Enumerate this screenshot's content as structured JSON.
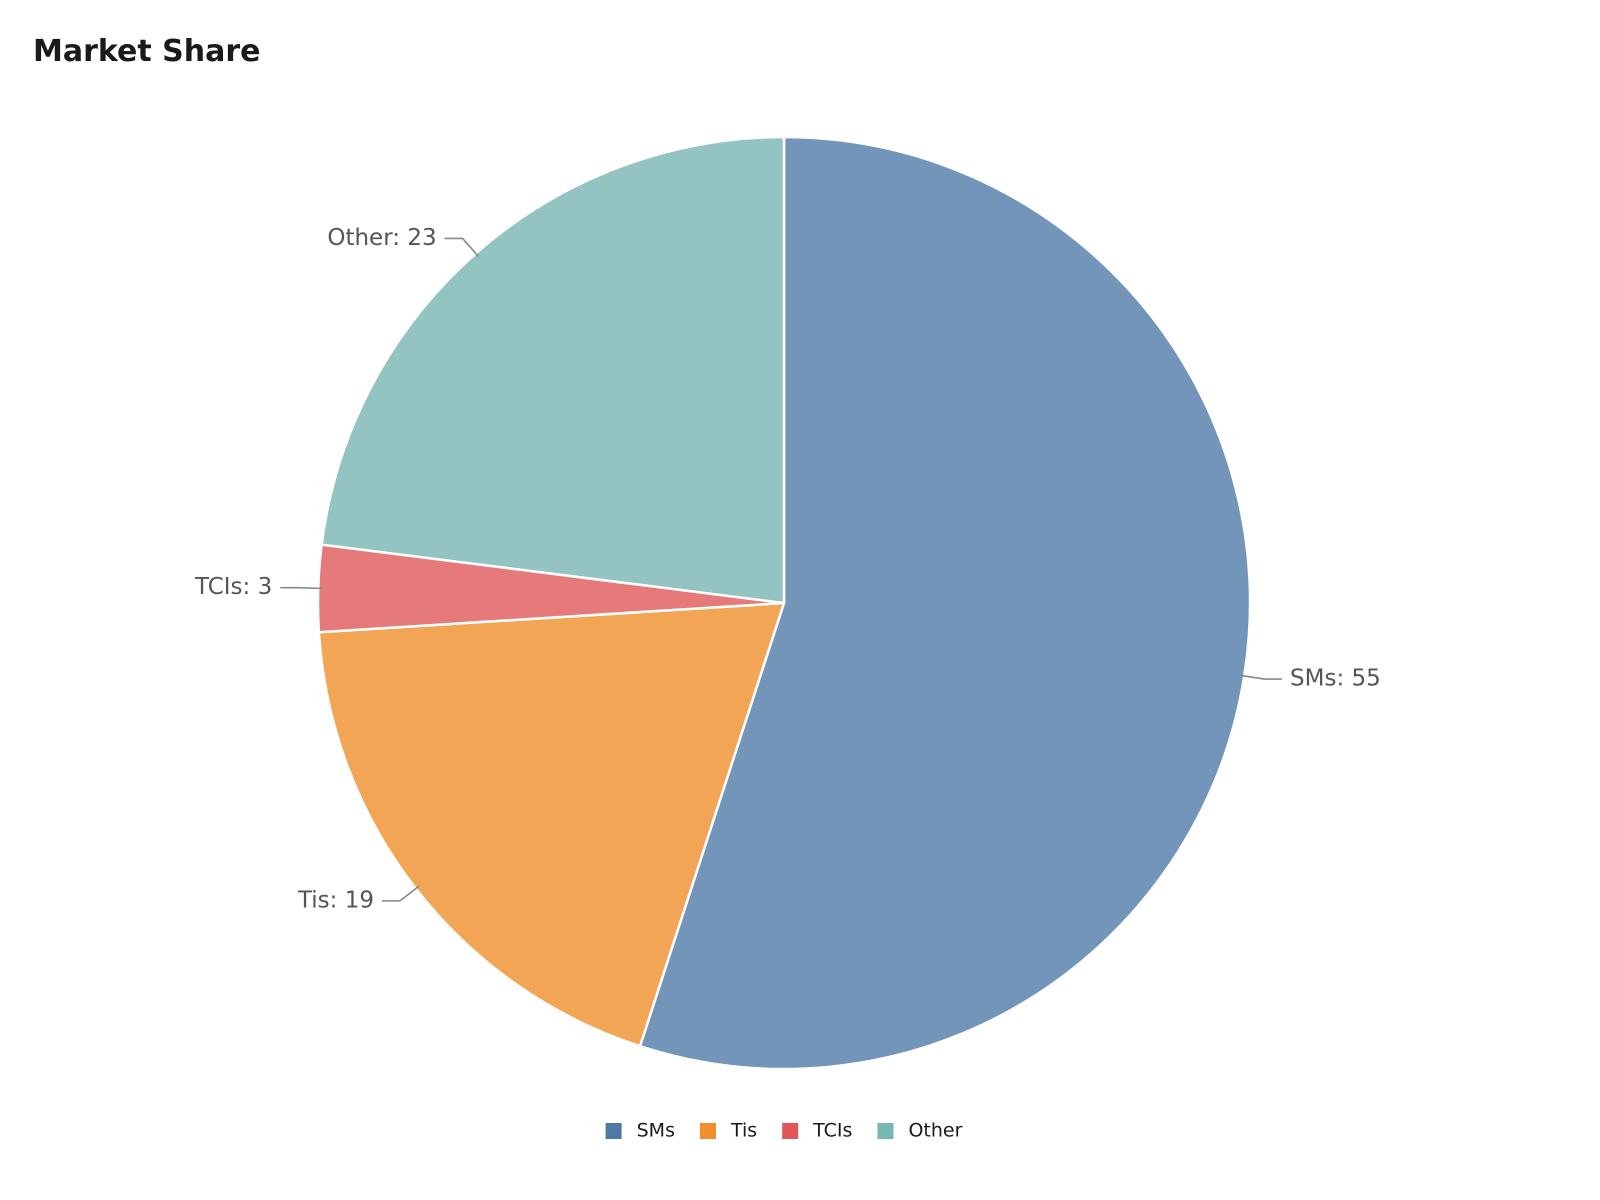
{
  "chart_data": {
    "type": "pie",
    "title": "Market Share",
    "categories": [
      "SMs",
      "Tis",
      "TCIs",
      "Other"
    ],
    "values": [
      55,
      19,
      3,
      23
    ],
    "slice_colors": [
      "#7295b9",
      "#f3a556",
      "#e67a7a",
      "#93c4c1"
    ],
    "legend_colors": [
      "#4e79a7",
      "#f28e2b",
      "#e15759",
      "#76b7b2"
    ],
    "legend": {
      "position": "bottom",
      "entries": [
        "SMs",
        "Tis",
        "TCIs",
        "Other"
      ]
    },
    "data_labels": [
      "SMs: 55",
      "Tis: 19",
      "TCIs: 3",
      "Other: 23"
    ],
    "start_angle_deg": 0,
    "direction": "clockwise"
  }
}
